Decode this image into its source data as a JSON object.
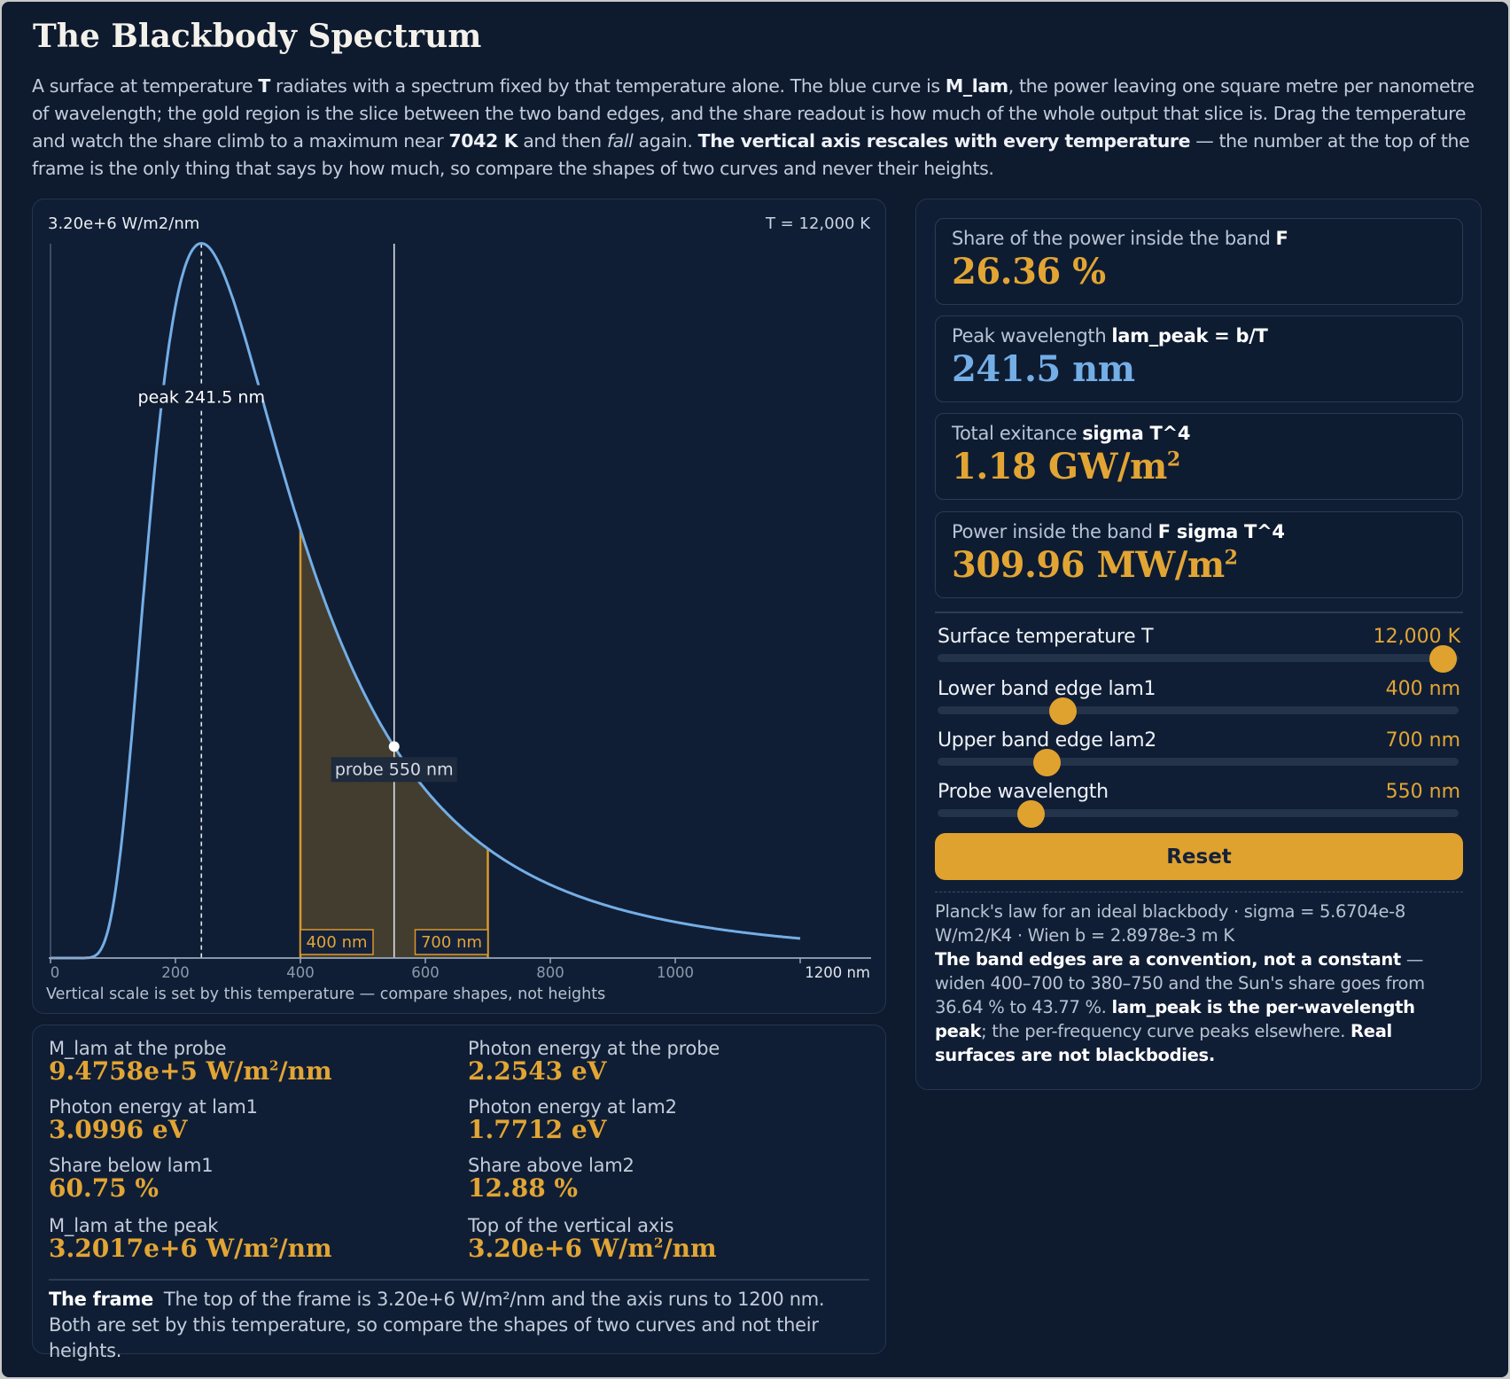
{
  "title": "The Blackbody Spectrum",
  "intro": {
    "p1": "A surface at temperature ",
    "b1": "T",
    "p2": " radiates with a spectrum fixed by that temperature alone. The blue curve is ",
    "b2": "M_lam",
    "p3": ", the power leaving one square metre per nanometre of wavelength; the gold region is the slice between the two band edges, and the share readout is how much of the whole output that slice is. Drag the temperature and watch the share climb to a maximum near ",
    "b3": "7042 K",
    "p4": " and then ",
    "i1": "fall",
    "p5": " again. ",
    "b4": "The vertical axis rescales with every temperature",
    "p6": " — the number at the top of the frame is the only thing that says by how much, so compare the shapes of two curves and never their heights."
  },
  "chart": {
    "y_top_label": "3.20e+6 W/m2/nm",
    "temp_label": "T = 12,000 K",
    "peak_label": "peak 241.5 nm",
    "probe_label": "probe 550 nm",
    "lam1_label": "400 nm",
    "lam2_label": "700 nm",
    "x_ticks": [
      "0",
      "200",
      "400",
      "600",
      "800",
      "1000",
      "1200 nm"
    ],
    "caption": "Vertical scale is set by this temperature — compare shapes, not heights"
  },
  "chart_data": {
    "type": "area",
    "title": "",
    "xlabel": "nm",
    "ylabel": "W/m2/nm",
    "xlim": [
      0,
      1200
    ],
    "ylim": [
      0,
      3200000
    ],
    "x_tick_values": [
      0,
      200,
      400,
      600,
      800,
      1000,
      1200
    ],
    "temperature_K": 12000,
    "series": [
      {
        "x": [
          50,
          100,
          150,
          200,
          241.5,
          300,
          350,
          400,
          450,
          500,
          550,
          600,
          700,
          800,
          900,
          1000,
          1100,
          1200
        ],
        "y": [
          0,
          269000,
          2160000,
          3080000,
          3201700,
          2910000,
          2450000,
          2000000,
          1610000,
          1270000,
          947580,
          803000,
          545000,
          385000,
          278000,
          206000,
          157000,
          121000
        ]
      }
    ],
    "band": {
      "lam1": 400,
      "lam2": 700
    },
    "peak": {
      "x": 241.5,
      "y": 3201700
    },
    "probe": {
      "x": 550,
      "y": 947580
    },
    "grid": false,
    "colors": {
      "curve": "#74aee6",
      "band_fill": "#433d2f",
      "band_edge": "#d9982a",
      "probe_line": "#dcdfe4"
    }
  },
  "readouts": [
    {
      "label": "Share of the power inside the band",
      "symbol": "F",
      "value": "26.36 %",
      "sup": "",
      "color": "gold"
    },
    {
      "label": "Peak wavelength",
      "symbol": "lam_peak = b/T",
      "value": "241.5 nm",
      "sup": "",
      "color": "blue"
    },
    {
      "label": "Total exitance",
      "symbol": "sigma T^4",
      "value": "1.18 GW/m",
      "sup": "2",
      "color": "gold"
    },
    {
      "label": "Power inside the band",
      "symbol": "F sigma T^4",
      "value": "309.96 MW/m",
      "sup": "2",
      "color": "gold"
    }
  ],
  "sliders": [
    {
      "label": "Surface temperature T",
      "value": "12,000 K",
      "fraction": 0.97
    },
    {
      "label": "Lower band edge lam1",
      "value": "400 nm",
      "fraction": 0.24
    },
    {
      "label": "Upper band edge lam2",
      "value": "700 nm",
      "fraction": 0.21
    },
    {
      "label": "Probe wavelength",
      "value": "550 nm",
      "fraction": 0.18
    }
  ],
  "reset_label": "Reset",
  "notes": {
    "t1": "Planck's law for an ideal blackbody · sigma = 5.6704e-8 W/m2/K4 · Wien b = 2.8978e-3 m K",
    "b1": "The band edges are a convention, not a constant",
    "t2": " — widen 400–700 to 380–750 and the Sun's share goes from 36.64 % to 43.77 %. ",
    "b2": "lam_peak is the per-wavelength peak",
    "t3": "; the per-frequency curve peaks elsewhere. ",
    "b3": "Real surfaces are not blackbodies."
  },
  "stats": {
    "probe_m": {
      "label": "M_lam at the probe",
      "value": "9.4758e+5 W/m",
      "sup": "2",
      "suffix": "/nm"
    },
    "probe_e": {
      "label": "Photon energy at the probe",
      "value": "2.2543 eV"
    },
    "lam1_e": {
      "label": "Photon energy at lam1",
      "value": "3.0996 eV"
    },
    "lam2_e": {
      "label": "Photon energy at lam2",
      "value": "1.7712 eV"
    },
    "below": {
      "label": "Share below lam1",
      "value": "60.75 %"
    },
    "above": {
      "label": "Share above lam2",
      "value": "12.88 %"
    },
    "peak_m": {
      "label": "M_lam at the peak",
      "value": "3.2017e+6 W/m",
      "sup": "2",
      "suffix": "/nm"
    },
    "axis_top": {
      "label": "Top of the vertical axis",
      "value": "3.20e+6 W/m",
      "sup": "2",
      "suffix": "/nm"
    }
  },
  "frame_note": {
    "head": "The frame",
    "text": "The top of the frame is 3.20e+6 W/m²/nm and the axis runs to 1200 nm. Both are set by this temperature, so compare the shapes of two curves and not their heights."
  }
}
